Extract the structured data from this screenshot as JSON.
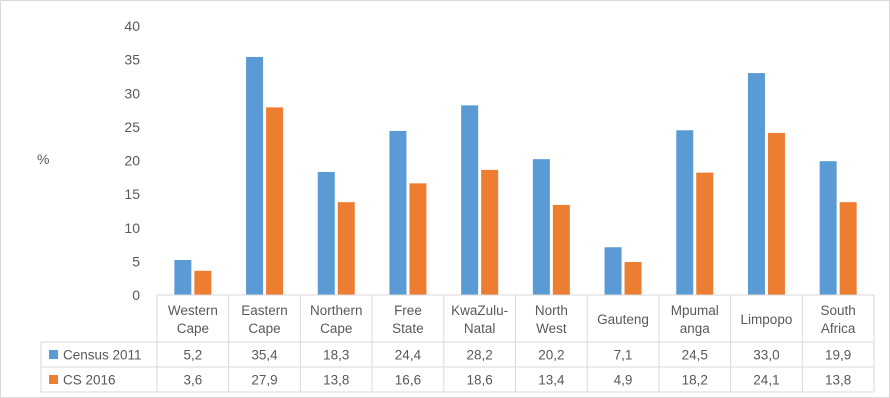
{
  "chart_data": {
    "type": "bar",
    "xlabel": "",
    "ylabel": "%",
    "ylim": [
      0,
      40
    ],
    "yticks": [
      0,
      5,
      10,
      15,
      20,
      25,
      30,
      35,
      40
    ],
    "grid": false,
    "legend": "left",
    "categories": [
      [
        "Western",
        "Cape"
      ],
      [
        "Eastern",
        "Cape"
      ],
      [
        "Northern",
        "Cape"
      ],
      [
        "Free",
        "State"
      ],
      [
        "KwaZulu-",
        "Natal"
      ],
      [
        "North",
        "West"
      ],
      [
        "Gauteng"
      ],
      [
        "Mpumal",
        "anga"
      ],
      [
        "Limpopo"
      ],
      [
        "South",
        "Africa"
      ]
    ],
    "series": [
      {
        "name": "Census 2011",
        "color": "#5b9bd5",
        "values": [
          5.2,
          35.4,
          18.3,
          24.4,
          28.2,
          20.2,
          7.1,
          24.5,
          33.0,
          19.9
        ],
        "labels": [
          "5,2",
          "35,4",
          "18,3",
          "24,4",
          "28,2",
          "20,2",
          "7,1",
          "24,5",
          "33,0",
          "19,9"
        ]
      },
      {
        "name": "CS 2016",
        "color": "#ed7d31",
        "values": [
          3.6,
          27.9,
          13.8,
          16.6,
          18.6,
          13.4,
          4.9,
          18.2,
          24.1,
          13.8
        ],
        "labels": [
          "3,6",
          "27,9",
          "13,8",
          "16,6",
          "18,6",
          "13,4",
          "4,9",
          "18,2",
          "24,1",
          "13,8"
        ]
      }
    ]
  }
}
